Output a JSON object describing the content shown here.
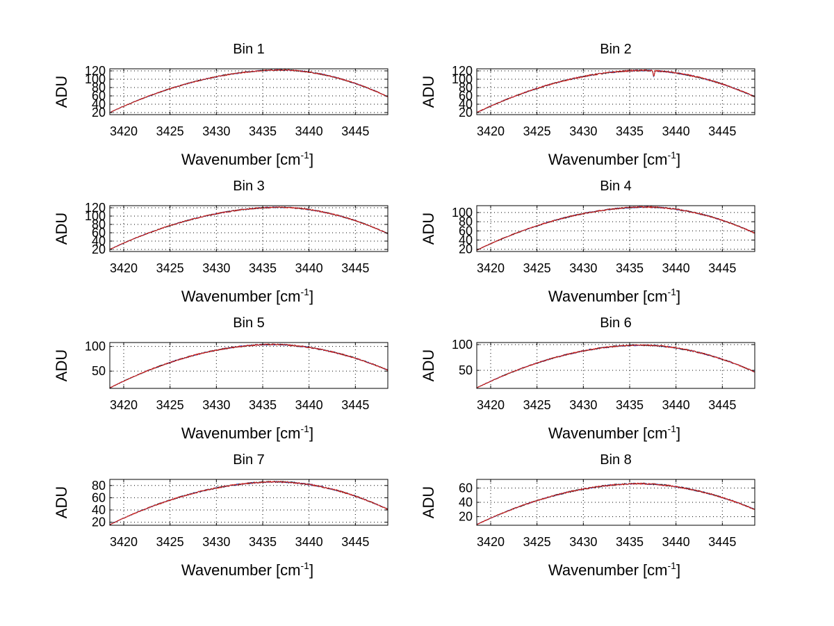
{
  "figure": {
    "background": "#ffffff",
    "series_colors": [
      "#1f3fbf",
      "#222222",
      "#e0201a"
    ]
  },
  "chart_data": [
    {
      "type": "line",
      "title": "Bin 1",
      "xlabel_main": "Wavenumber [cm",
      "xlabel_sup": "-1",
      "xlabel_close": "]",
      "ylabel": "ADU",
      "xlim": [
        3418.5,
        3448.5
      ],
      "ylim": [
        15,
        125
      ],
      "xticks": [
        3420,
        3425,
        3430,
        3435,
        3440,
        3445
      ],
      "yticks": [
        20,
        40,
        60,
        80,
        100,
        120
      ],
      "ytick_labels_overlapping": [
        "20",
        "40",
        "60",
        "80",
        "100",
        "120"
      ],
      "grid": true,
      "curve": {
        "start": 20,
        "peak": 122,
        "peak_x": 3437,
        "end": 58,
        "noise": 1.5
      }
    },
    {
      "type": "line",
      "title": "Bin 2",
      "xlabel_main": "Wavenumber [cm",
      "xlabel_sup": "-1",
      "xlabel_close": "]",
      "ylabel": "ADU",
      "xlim": [
        3418.5,
        3448.5
      ],
      "ylim": [
        15,
        125
      ],
      "xticks": [
        3420,
        3425,
        3430,
        3435,
        3440,
        3445
      ],
      "yticks": [
        20,
        40,
        60,
        80,
        100,
        120
      ],
      "grid": true,
      "curve": {
        "start": 20,
        "peak": 121,
        "peak_x": 3436.5,
        "end": 58,
        "noise": 1.8,
        "dip_x": 3437.6,
        "dip_depth": 14
      }
    },
    {
      "type": "line",
      "title": "Bin 3",
      "xlabel_main": "Wavenumber [cm",
      "xlabel_sup": "-1",
      "xlabel_close": "]",
      "ylabel": "ADU",
      "xlim": [
        3418.5,
        3448.5
      ],
      "ylim": [
        15,
        125
      ],
      "xticks": [
        3420,
        3425,
        3430,
        3435,
        3440,
        3445
      ],
      "yticks": [
        20,
        40,
        60,
        80,
        100,
        120
      ],
      "grid": true,
      "curve": {
        "start": 20,
        "peak": 121,
        "peak_x": 3436.8,
        "end": 58,
        "noise": 1.5
      }
    },
    {
      "type": "line",
      "title": "Bin 4",
      "xlabel_main": "Wavenumber [cm",
      "xlabel_sup": "-1",
      "xlabel_close": "]",
      "ylabel": "ADU",
      "xlim": [
        3418.5,
        3448.5
      ],
      "ylim": [
        15,
        115
      ],
      "xticks": [
        3420,
        3425,
        3430,
        3435,
        3440,
        3445
      ],
      "yticks": [
        20,
        40,
        60,
        80,
        100
      ],
      "grid": true,
      "curve": {
        "start": 18,
        "peak": 112,
        "peak_x": 3436.8,
        "end": 55,
        "noise": 1.5
      }
    },
    {
      "type": "line",
      "title": "Bin 5",
      "xlabel_main": "Wavenumber [cm",
      "xlabel_sup": "-1",
      "xlabel_close": "]",
      "ylabel": "ADU",
      "xlim": [
        3418.5,
        3448.5
      ],
      "ylim": [
        15,
        108
      ],
      "xticks": [
        3420,
        3425,
        3430,
        3435,
        3440,
        3445
      ],
      "yticks": [
        50,
        100
      ],
      "grid": true,
      "curve": {
        "start": 16,
        "peak": 104,
        "peak_x": 3436,
        "end": 52,
        "noise": 1.4
      }
    },
    {
      "type": "line",
      "title": "Bin 6",
      "xlabel_main": "Wavenumber [cm",
      "xlabel_sup": "-1",
      "xlabel_close": "]",
      "ylabel": "ADU",
      "xlim": [
        3418.5,
        3448.5
      ],
      "ylim": [
        15,
        104
      ],
      "xticks": [
        3420,
        3425,
        3430,
        3435,
        3440,
        3445
      ],
      "yticks": [
        50,
        100
      ],
      "grid": true,
      "curve": {
        "start": 16,
        "peak": 99,
        "peak_x": 3436.2,
        "end": 47,
        "noise": 1.4
      }
    },
    {
      "type": "line",
      "title": "Bin 7",
      "xlabel_main": "Wavenumber [cm",
      "xlabel_sup": "-1",
      "xlabel_close": "]",
      "ylabel": "ADU",
      "xlim": [
        3418.5,
        3448.5
      ],
      "ylim": [
        15,
        90
      ],
      "xticks": [
        3420,
        3425,
        3430,
        3435,
        3440,
        3445
      ],
      "yticks": [
        20,
        40,
        60,
        80
      ],
      "grid": true,
      "curve": {
        "start": 16,
        "peak": 86,
        "peak_x": 3436.5,
        "end": 41,
        "noise": 1.2
      }
    },
    {
      "type": "line",
      "title": "Bin 8",
      "xlabel_main": "Wavenumber [cm",
      "xlabel_sup": "-1",
      "xlabel_close": "]",
      "ylabel": "ADU",
      "xlim": [
        3418.5,
        3448.5
      ],
      "ylim": [
        8,
        72
      ],
      "xticks": [
        3420,
        3425,
        3430,
        3435,
        3440,
        3445
      ],
      "yticks": [
        20,
        40,
        60
      ],
      "grid": true,
      "curve": {
        "start": 9,
        "peak": 66,
        "peak_x": 3436,
        "end": 30,
        "noise": 1.1
      }
    }
  ]
}
